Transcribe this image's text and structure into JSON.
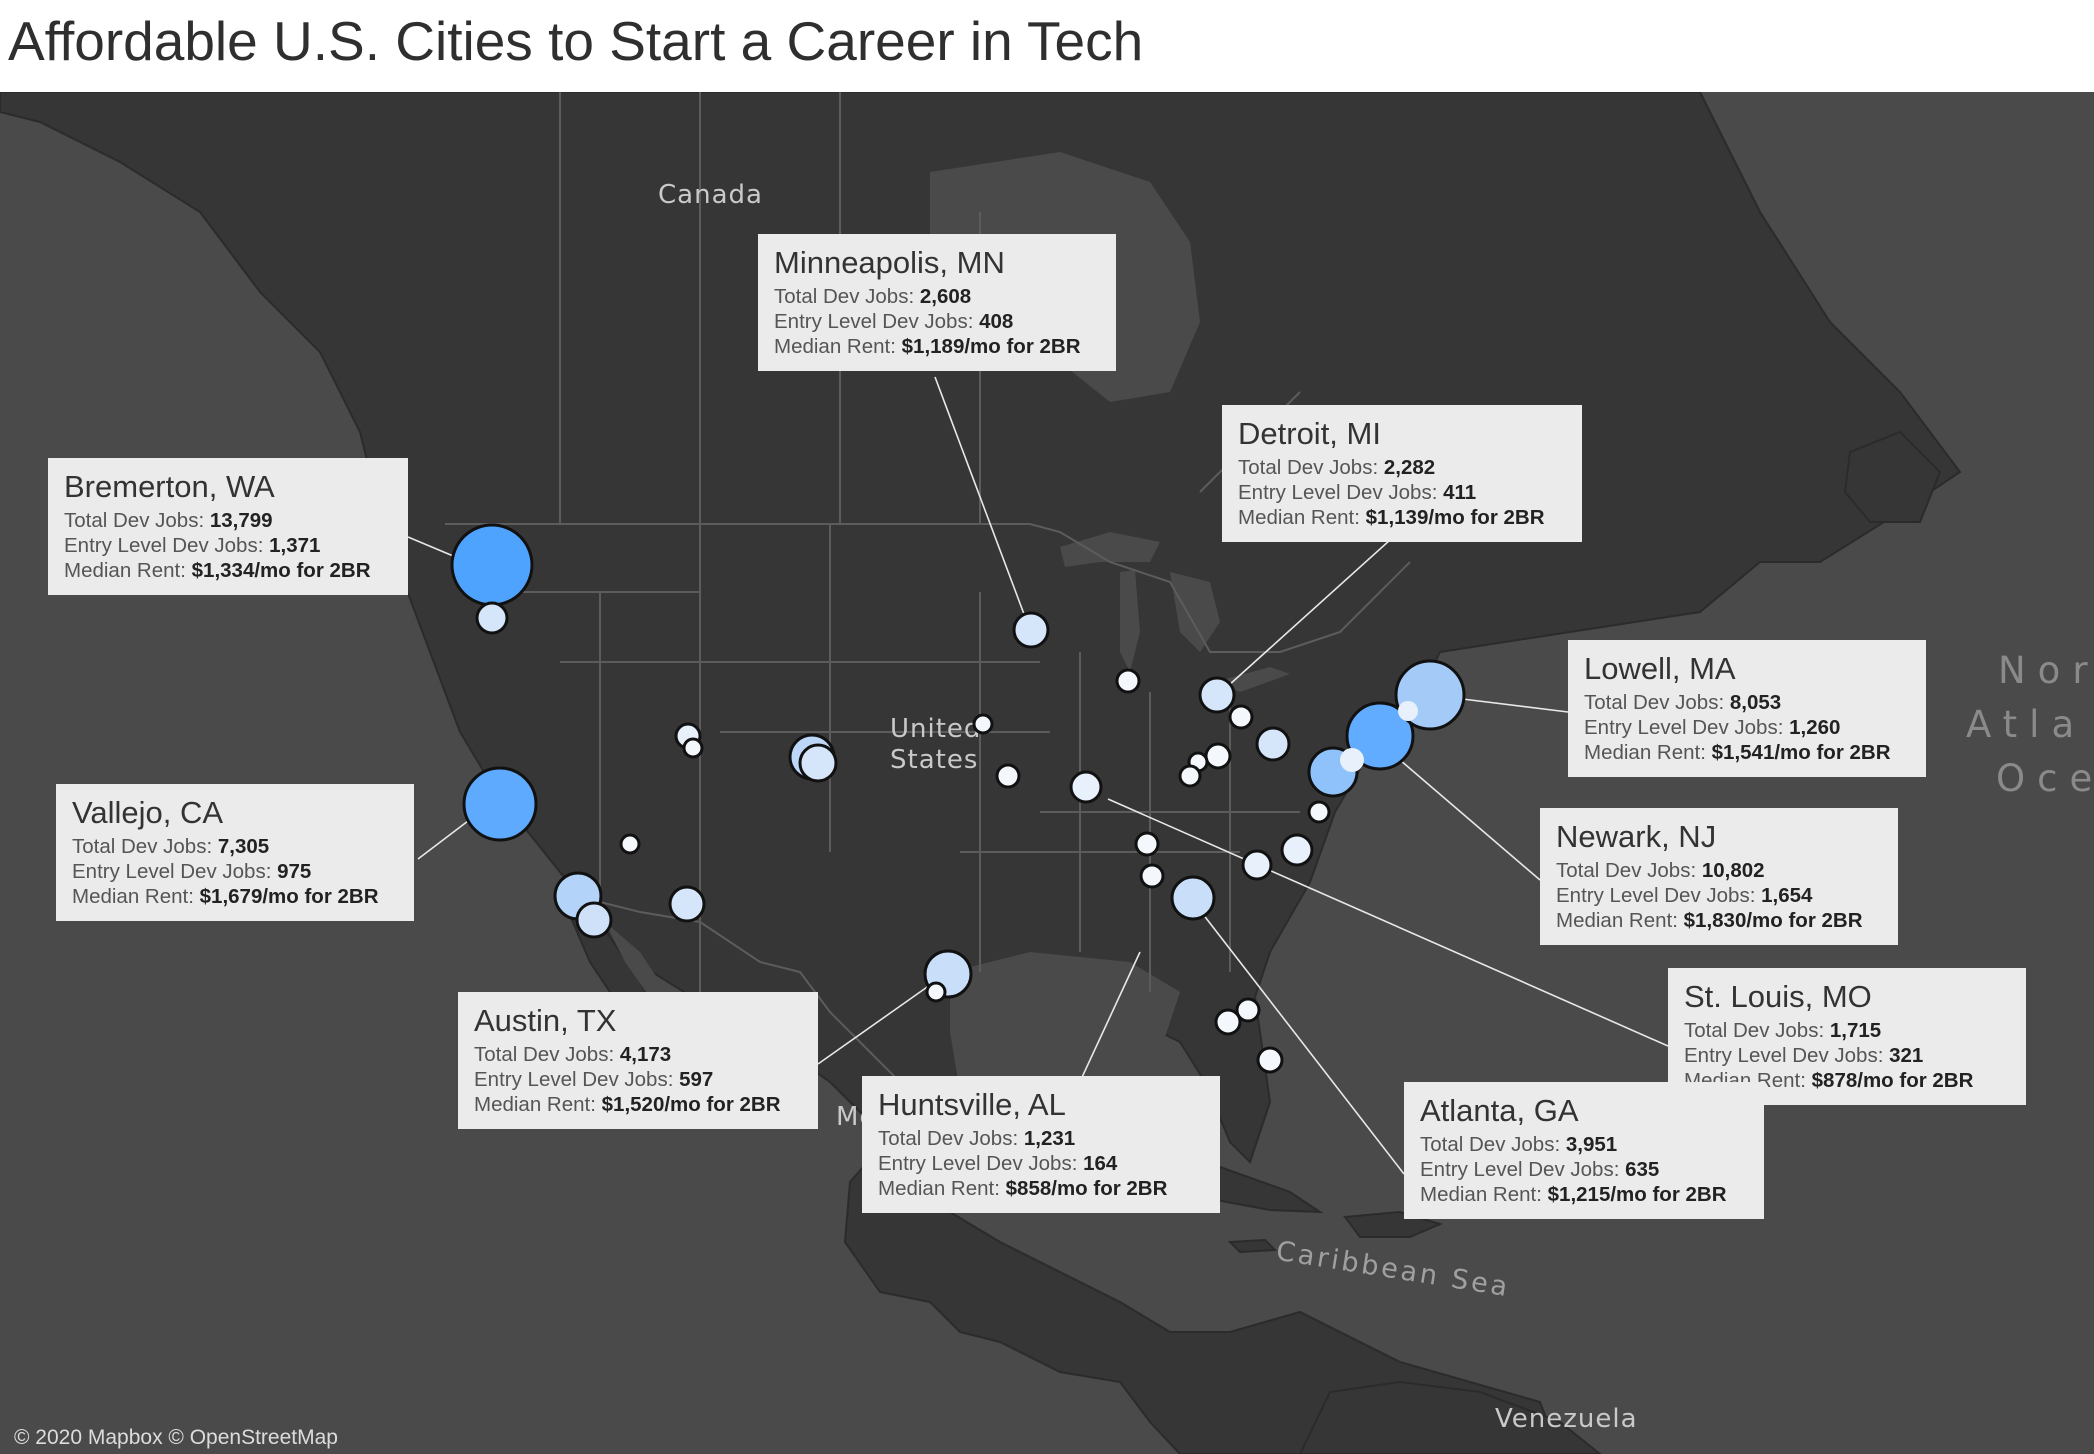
{
  "title": "Affordable U.S. Cities to Start a Career in Tech",
  "attribution": "© 2020 Mapbox © OpenStreetMap",
  "place_labels": {
    "canada": "Canada",
    "united": "United",
    "states": "States",
    "mexico_partial": "Me",
    "caribbean": "Caribbean Sea",
    "venezuela": "Venezuela",
    "north_atlantic": [
      "Nor",
      "Atla",
      "Oce"
    ]
  },
  "field_labels": {
    "total": "Total Dev Jobs:",
    "entry": "Entry Level Dev Jobs:",
    "rent": "Median Rent:"
  },
  "colors": {
    "map_background": "#4a4a4b",
    "land": "#363637",
    "marker_large": "#4ea3ff",
    "marker_medium": "#a4cbf7",
    "marker_small": "#d5e6fa",
    "marker_tiny": "#f4f8fd",
    "tooltip": "#ebebeb"
  },
  "cities": [
    {
      "name": "Minneapolis,  MN",
      "total": "2,608",
      "entry": "408",
      "rent": "$1,189/mo for 2BR"
    },
    {
      "name": "Detroit,  MI",
      "total": "2,282",
      "entry": "411",
      "rent": "$1,139/mo for 2BR"
    },
    {
      "name": "Bremerton,  WA",
      "total": "13,799",
      "entry": "1,371",
      "rent": "$1,334/mo for 2BR"
    },
    {
      "name": "Lowell,  MA",
      "total": "8,053",
      "entry": "1,260",
      "rent": "$1,541/mo for 2BR"
    },
    {
      "name": "Vallejo,  CA",
      "total": "7,305",
      "entry": "975",
      "rent": "$1,679/mo for 2BR"
    },
    {
      "name": "Newark,  NJ",
      "total": "10,802",
      "entry": "1,654",
      "rent": "$1,830/mo for 2BR"
    },
    {
      "name": "Austin,  TX",
      "total": "4,173",
      "entry": "597",
      "rent": "$1,520/mo for 2BR"
    },
    {
      "name": "St. Louis,  MO",
      "total": "1,715",
      "entry": "321",
      "rent": "$878/mo for 2BR"
    },
    {
      "name": "Huntsville,  AL",
      "total": "1,231",
      "entry": "164",
      "rent": "$858/mo for 2BR"
    },
    {
      "name": "Atlanta,  GA",
      "total": "3,951",
      "entry": "635",
      "rent": "$1,215/mo for 2BR"
    }
  ]
}
